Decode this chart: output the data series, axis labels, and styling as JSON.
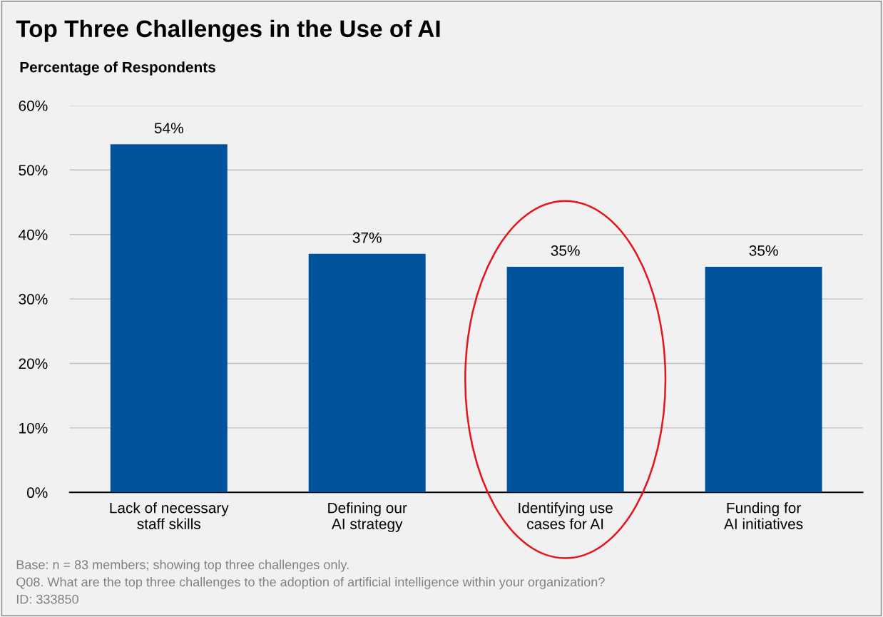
{
  "chart_data": {
    "type": "bar",
    "title": "Top Three Challenges in the Use of AI",
    "ylabel": "Percentage of Respondents",
    "categories": [
      "Lack of necessary\nstaff skills",
      "Defining our\nAI strategy",
      "Identifying use\ncases for AI",
      "Funding for\nAI initiatives"
    ],
    "values": [
      54,
      37,
      35,
      35
    ],
    "color": "#00539b",
    "value_labels": [
      "54%",
      "37%",
      "35%",
      "35%"
    ],
    "ylim": [
      0,
      60
    ],
    "yticks": [
      {
        "value": 0,
        "label": "0%"
      },
      {
        "value": 10,
        "label": "10%"
      },
      {
        "value": 20,
        "label": "20%"
      },
      {
        "value": 30,
        "label": "30%"
      },
      {
        "value": 40,
        "label": "40%"
      },
      {
        "value": 50,
        "label": "50%"
      },
      {
        "value": 60,
        "label": "60%"
      }
    ],
    "grid": "y",
    "legend": false,
    "annotations": [
      "Base: n = 83 members; showing top three challenges only.",
      "Q08. What are the top three challenges to the adoption of artificial intelligence within your organization?",
      "ID: 333850"
    ]
  }
}
